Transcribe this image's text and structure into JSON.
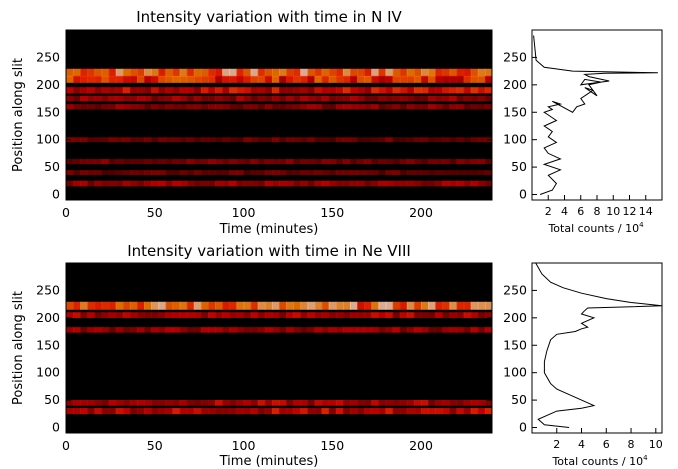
{
  "chart_data": [
    {
      "type": "heatmap",
      "title": "Intensity variation with time in N IV",
      "xlabel": "Time (minutes)",
      "ylabel": "Position along slit",
      "xlim": [
        0,
        240
      ],
      "ylim": [
        -10,
        300
      ],
      "xticks": [
        0,
        50,
        100,
        150,
        200
      ],
      "yticks": [
        0,
        50,
        100,
        150,
        200,
        250
      ],
      "colormap": "black-red-yellow-white",
      "bright_band_rows": [
        {
          "y": 222,
          "intensity": 1.0
        },
        {
          "y": 210,
          "intensity": 0.8
        },
        {
          "y": 190,
          "intensity": 0.65
        },
        {
          "y": 175,
          "intensity": 0.5
        },
        {
          "y": 160,
          "intensity": 0.45
        },
        {
          "y": 100,
          "intensity": 0.35
        },
        {
          "y": 60,
          "intensity": 0.4
        },
        {
          "y": 40,
          "intensity": 0.35
        },
        {
          "y": 20,
          "intensity": 0.5
        }
      ]
    },
    {
      "type": "line",
      "xlabel": "Total counts",
      "xlabel_unit_base": "10",
      "xlabel_unit_exp": "4",
      "xticks": [
        "2",
        "4",
        "6",
        "8",
        "10",
        "12",
        "14"
      ],
      "xlim": [
        0,
        16
      ],
      "ylim": [
        -10,
        300
      ],
      "yticks": [
        0,
        50,
        100,
        150,
        200,
        250
      ],
      "series": [
        {
          "x": [
            1.0,
            2.5,
            3.0,
            2.0,
            3.5,
            1.5,
            3.5,
            2.0,
            1.5,
            3.0,
            2.0,
            2.5,
            1.5,
            3.0,
            2.0,
            1.5,
            2.5,
            2.0,
            3.5,
            2.5,
            5.0,
            5.5,
            6.5,
            6.0,
            7.0,
            7.5,
            6.5,
            8.0,
            7.0,
            8.5,
            6.5,
            6.0,
            9.5,
            7.0,
            6.5,
            9.0,
            15.5,
            5.0,
            1.5,
            0.5,
            0.2
          ],
          "y": [
            0,
            8,
            20,
            35,
            45,
            55,
            65,
            75,
            85,
            95,
            105,
            115,
            125,
            135,
            145,
            150,
            155,
            160,
            165,
            170,
            150,
            160,
            165,
            175,
            185,
            190,
            195,
            180,
            200,
            205,
            210,
            200,
            207,
            215,
            219,
            221,
            222,
            225,
            232,
            245,
            290
          ]
        }
      ]
    },
    {
      "type": "heatmap",
      "title": "Intensity variation with time in Ne VIII",
      "xlabel": "Time (minutes)",
      "ylabel": "Position along slit",
      "xlim": [
        0,
        240
      ],
      "ylim": [
        -10,
        300
      ],
      "xticks": [
        0,
        50,
        100,
        150,
        200
      ],
      "yticks": [
        0,
        50,
        100,
        150,
        200,
        250
      ],
      "colormap": "black-red-yellow-white",
      "bright_band_rows": [
        {
          "y": 222,
          "intensity": 1.0
        },
        {
          "y": 205,
          "intensity": 0.55
        },
        {
          "y": 178,
          "intensity": 0.5
        },
        {
          "y": 45,
          "intensity": 0.55
        },
        {
          "y": 30,
          "intensity": 0.6
        }
      ]
    },
    {
      "type": "line",
      "xlabel": "Total counts",
      "xlabel_unit_base": "10",
      "xlabel_unit_exp": "4",
      "xticks": [
        "2",
        "4",
        "6",
        "8",
        "10"
      ],
      "xlim": [
        0,
        10.5
      ],
      "ylim": [
        -10,
        300
      ],
      "yticks": [
        0,
        50,
        100,
        150,
        200,
        250
      ],
      "series": [
        {
          "x": [
            3.0,
            1.0,
            0.5,
            1.5,
            2.0,
            4.0,
            5.0,
            4.0,
            3.0,
            2.0,
            1.5,
            1.0,
            1.0,
            1.2,
            1.5,
            2.0,
            3.5,
            4.0,
            4.5,
            4.0,
            5.0,
            4.0,
            4.2,
            4.5,
            10.5,
            8.0,
            6.0,
            4.0,
            2.5,
            1.5,
            0.8,
            0.3
          ],
          "y": [
            0,
            5,
            15,
            25,
            30,
            35,
            40,
            50,
            60,
            70,
            80,
            100,
            120,
            140,
            160,
            170,
            175,
            180,
            183,
            190,
            200,
            207,
            212,
            218,
            222,
            228,
            235,
            245,
            255,
            265,
            280,
            300
          ]
        }
      ]
    }
  ]
}
